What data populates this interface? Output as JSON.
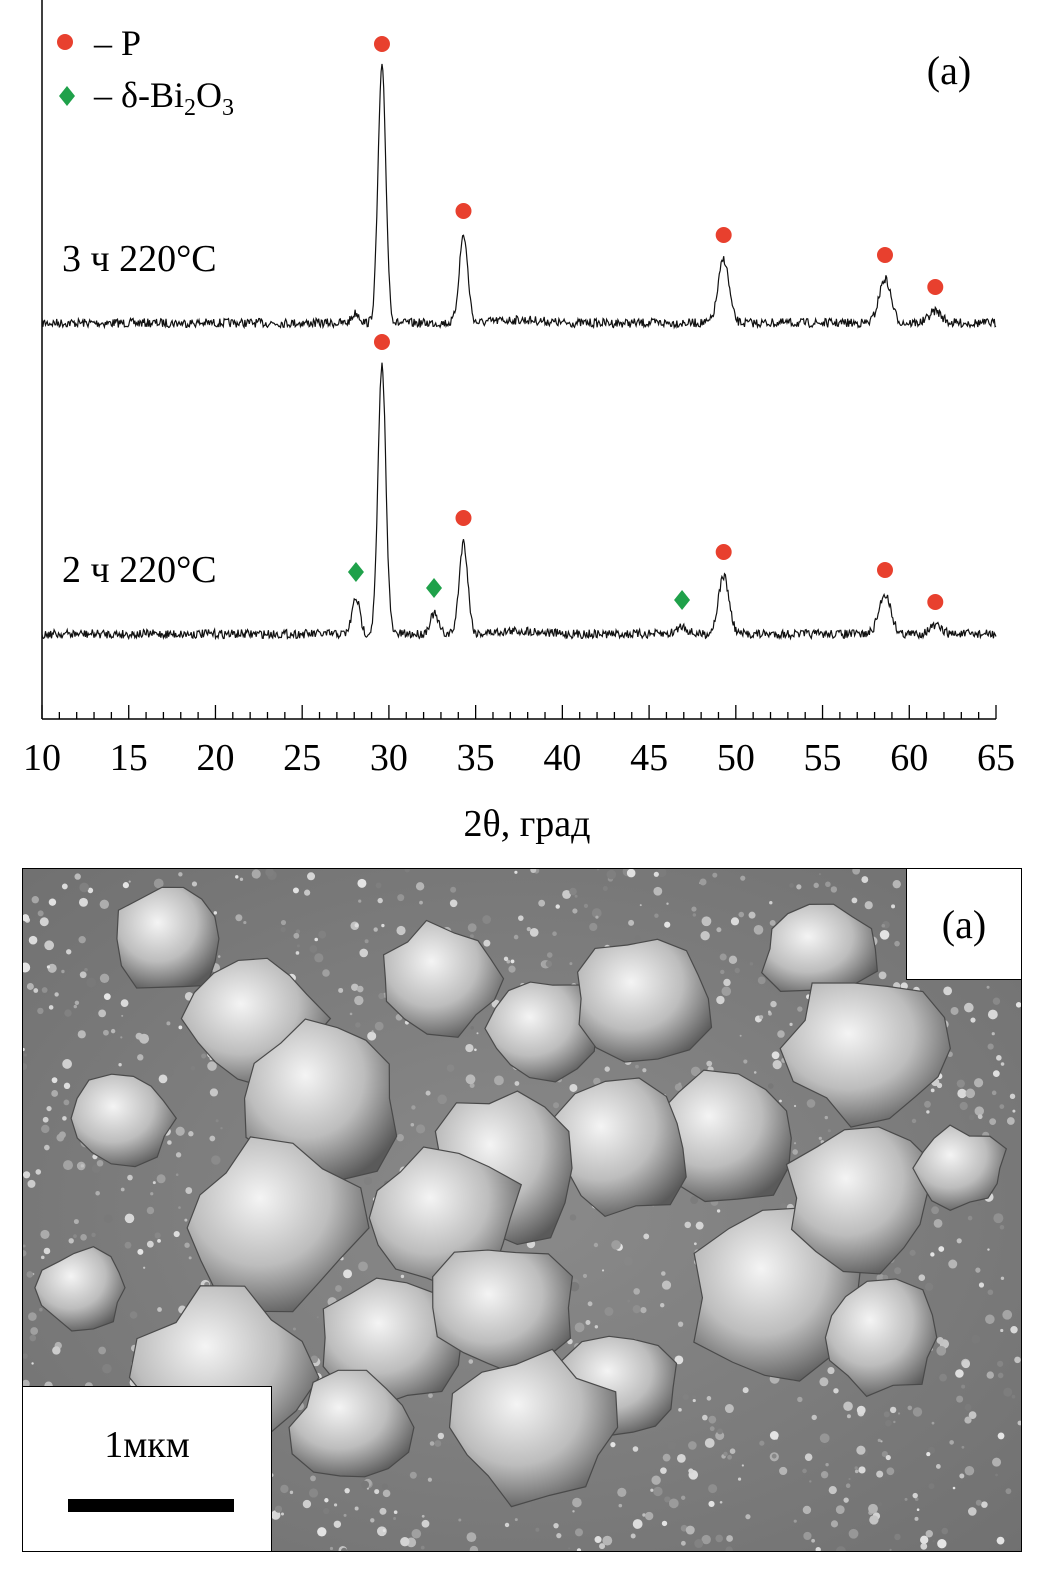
{
  "chart_data": {
    "type": "line",
    "panel_label": "(a)",
    "xlabel": "2θ, град",
    "xlim": [
      10,
      65
    ],
    "xticks": [
      10,
      15,
      20,
      25,
      30,
      35,
      40,
      45,
      50,
      55,
      60,
      65
    ],
    "legend": {
      "placement": "top-left",
      "entries": [
        {
          "marker": "circle",
          "color": "#e8402e",
          "label_prefix": "– P",
          "label": "– P"
        },
        {
          "marker": "diamond",
          "color": "#1fa14a",
          "label_prefix": "– δ-Bi",
          "sub1": "2",
          "mid": "O",
          "sub2": "3"
        }
      ]
    },
    "series": [
      {
        "name": "3 ч 220°C",
        "baseline_y": 323,
        "peaks": [
          [
            28.1,
            10
          ],
          [
            29.6,
            255
          ],
          [
            34.3,
            88
          ],
          [
            49.3,
            64
          ],
          [
            58.6,
            44
          ],
          [
            61.5,
            12
          ]
        ],
        "phase_P_markers": [
          29.6,
          34.3,
          49.3,
          58.6,
          61.5
        ],
        "phase_Bi2O3_markers": []
      },
      {
        "name": "2 ч 220°C",
        "baseline_y": 634,
        "peaks": [
          [
            28.1,
            36
          ],
          [
            29.6,
            268
          ],
          [
            32.6,
            20
          ],
          [
            34.3,
            92
          ],
          [
            46.9,
            8
          ],
          [
            49.3,
            58
          ],
          [
            58.6,
            40
          ],
          [
            61.5,
            8
          ]
        ],
        "phase_P_markers": [
          29.6,
          34.3,
          49.3,
          58.6,
          61.5
        ],
        "phase_Bi2O3_markers": [
          28.1,
          32.6,
          46.9
        ]
      }
    ],
    "colors": {
      "P": "#e8402e",
      "Bi2O3": "#1fa14a"
    }
  },
  "micrograph": {
    "panel_label": "(a)",
    "scale_bar_label": "1мкм"
  }
}
